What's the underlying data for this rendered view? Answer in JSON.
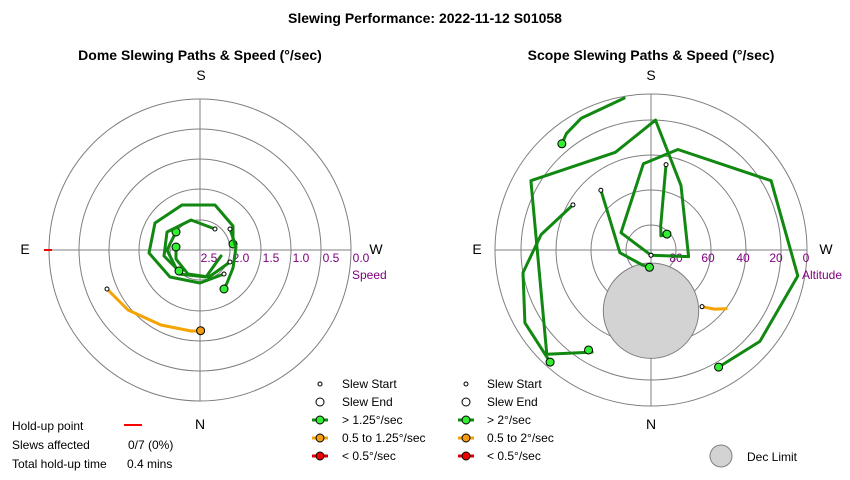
{
  "title": "Slewing Performance: 2022-11-12 S01058",
  "colors": {
    "ring": "#7f7f7f",
    "fast": "#118811",
    "medium": "#f5a300",
    "slow": "#dd0000",
    "fast_dot": "#33ee33",
    "medium_dot": "#f39c12",
    "slow_dot": "#ee0000",
    "label": "#800080",
    "dec_limit": "#d3d3d3",
    "holdup": "#ff0000"
  },
  "chart_data": [
    {
      "type": "polar",
      "title": "Dome Slewing Paths & Speed (°/sec)",
      "cardinals": {
        "top": "S",
        "bottom": "N",
        "left": "E",
        "right": "W"
      },
      "radial_axis": {
        "label": "Speed",
        "ticks": [
          "2.5",
          "2.0",
          "1.5",
          "1.0",
          "0.5",
          "0.0"
        ],
        "inverted": true
      },
      "paths": [
        {
          "speed": "medium",
          "points": [
            [
              -31,
              13
            ],
            [
              -24,
              20
            ],
            [
              -13,
              25
            ],
            [
              -3,
              27
            ],
            [
              -0.5,
              27
            ],
            [
              0.2,
              26.9
            ]
          ],
          "start": true,
          "end": true
        },
        {
          "speed": "fast",
          "points": [
            [
              8,
              8
            ],
            [
              0,
              11
            ],
            [
              -10,
              9
            ],
            [
              -17,
              1
            ],
            [
              -15,
              -9
            ],
            [
              -6,
              -15
            ],
            [
              5,
              -15
            ],
            [
              11,
              -8
            ],
            [
              11,
              -2
            ]
          ],
          "start": true,
          "end": true
        },
        {
          "speed": "fast",
          "points": [
            [
              7,
              2
            ],
            [
              2,
              9
            ],
            [
              -7,
              8
            ],
            [
              -11,
              0
            ],
            [
              -8,
              -6
            ]
          ],
          "start": false,
          "end": true
        },
        {
          "speed": "fast",
          "points": [
            [
              5,
              -7
            ],
            [
              -3,
              -10
            ],
            [
              -11,
              -6
            ],
            [
              -12,
              2
            ],
            [
              -7,
              7
            ]
          ],
          "start": true,
          "end": true
        },
        {
          "speed": "fast",
          "points": [
            [
              10,
              4
            ],
            [
              3,
              9
            ],
            [
              -4,
              8
            ],
            [
              -8,
              3
            ],
            [
              -8,
              -1
            ]
          ],
          "start": true,
          "end": true
        },
        {
          "speed": "fast",
          "points": [
            [
              10,
              -7
            ],
            [
              12,
              -1
            ],
            [
              11,
              6
            ],
            [
              9,
              11
            ],
            [
              8,
              13
            ]
          ],
          "start": true,
          "end": true
        }
      ]
    },
    {
      "type": "polar",
      "title": "Scope Slewing Paths & Speed (°/sec)",
      "cardinals": {
        "top": "S",
        "bottom": "N",
        "left": "E",
        "right": "W"
      },
      "radial_axis": {
        "label": "Altitude",
        "ticks": [
          "80",
          "60",
          "40",
          "20",
          "0"
        ],
        "inverted": false
      },
      "dec_limit": {
        "az": 180,
        "alt": 55,
        "radius_deg": 11
      },
      "paths": [
        {
          "speed": "fast",
          "points": [
            [
              180,
              87
            ],
            [
              300,
              70
            ],
            [
              355,
              40
            ],
            [
              15,
              30
            ],
            [
              60,
              10
            ],
            [
              100,
              4
            ],
            [
              130,
              8
            ],
            [
              150,
              12
            ]
          ],
          "start": true,
          "end": true
        },
        {
          "speed": "fast",
          "points": [
            [
              -10,
              1
            ],
            [
              -28,
              4
            ],
            [
              -36,
              7
            ],
            [
              -40,
              10
            ]
          ],
          "start": false,
          "end": true
        },
        {
          "speed": "fast",
          "points": [
            [
              180,
              87
            ],
            [
              100,
              68
            ],
            [
              25,
              49
            ],
            [
              2,
              15
            ],
            [
              340,
              30
            ],
            [
              300,
              10
            ],
            [
              225,
              5
            ],
            [
              210,
              22
            ],
            [
              212,
              22
            ]
          ],
          "start": true,
          "end": true
        },
        {
          "speed": "fast",
          "points": [
            [
              10,
              40
            ],
            [
              22,
              75
            ],
            [
              35,
              80
            ],
            [
              45,
              77
            ]
          ],
          "start": true,
          "end": true
        },
        {
          "speed": "fast",
          "points": [
            [
              320,
              45
            ],
            [
              265,
              72
            ],
            [
              210,
              80
            ],
            [
              185,
              80
            ]
          ],
          "start": true,
          "end": true
        },
        {
          "speed": "medium",
          "points": [
            [
              138,
              46
            ],
            [
              133,
              40
            ],
            [
              128,
              35
            ]
          ],
          "start": true,
          "end": false
        },
        {
          "speed": "fast",
          "points": [
            [
              300,
              38
            ],
            [
              278,
              26
            ],
            [
              260,
              15
            ],
            [
              240,
              6
            ],
            [
              222,
              3
            ]
          ],
          "start": true,
          "end": true
        }
      ]
    }
  ],
  "legend_left": {
    "slew_start": "Slew Start",
    "slew_end": "Slew End",
    "fast": "> 1.25°/sec",
    "medium": "0.5 to 1.25°/sec",
    "slow": "< 0.5°/sec"
  },
  "legend_right": {
    "slew_start": "Slew Start",
    "slew_end": "Slew End",
    "fast": "> 2°/sec",
    "medium": "0.5 to 2°/sec",
    "slow": "< 0.5°/sec",
    "dec_limit": "Dec Limit"
  },
  "holdup": {
    "point_label": "Hold-up point",
    "slews_label": "Slews affected",
    "slews_value": "0/7 (0%)",
    "total_label": "Total hold-up time",
    "total_value": "0.4 mins"
  }
}
